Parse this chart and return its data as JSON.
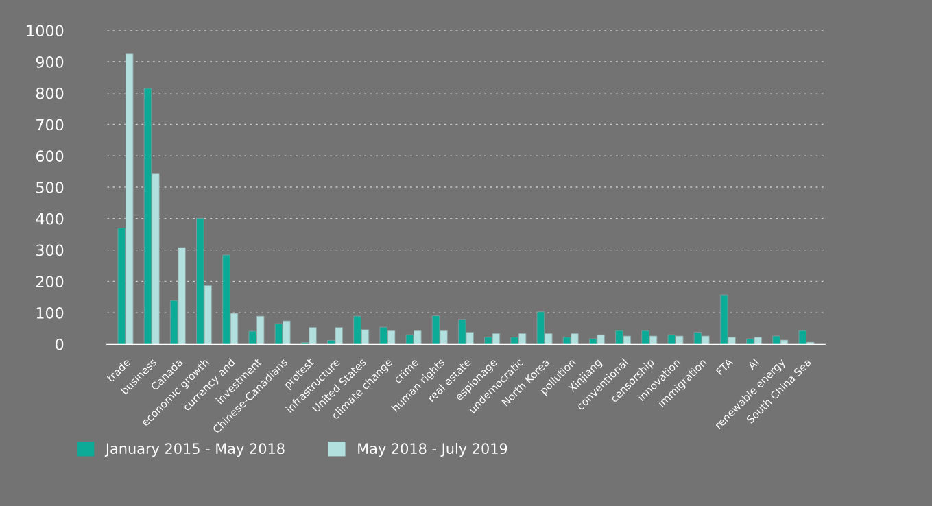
{
  "chart_data": {
    "type": "bar",
    "categories": [
      "trade",
      "business",
      "Canada",
      "economic growth",
      "currency and",
      "investment",
      "Chinese-Canadians",
      "protest",
      "infrastructure",
      "United States",
      "climate change",
      "crime",
      "human rights",
      "real estate",
      "espionage",
      "undemocratic",
      "North Korea",
      "pollution",
      "Xinjiang",
      "conventional",
      "censorship",
      "innovation",
      "immigration",
      "FTA",
      "AI",
      "renewable energy",
      "South China Sea"
    ],
    "series": [
      {
        "name": "January 2015 - May 2018",
        "color": "#0bab98",
        "values": [
          370,
          815,
          139,
          401,
          284,
          41,
          65,
          5,
          12,
          89,
          54,
          30,
          90,
          79,
          22,
          22,
          103,
          22,
          17,
          43,
          43,
          30,
          38,
          157,
          17,
          26,
          43
        ]
      },
      {
        "name": "May 2018 - July 2019",
        "color": "#b2e0df",
        "values": [
          925,
          543,
          308,
          187,
          98,
          89,
          74,
          53,
          53,
          46,
          43,
          43,
          43,
          38,
          34,
          34,
          34,
          34,
          30,
          26,
          26,
          26,
          26,
          22,
          22,
          13,
          6
        ]
      }
    ],
    "ylim": [
      0,
      1000
    ],
    "yticks": [
      0,
      100,
      200,
      300,
      400,
      500,
      600,
      700,
      800,
      900,
      1000
    ],
    "grid": "y",
    "legend": "bottom left"
  }
}
